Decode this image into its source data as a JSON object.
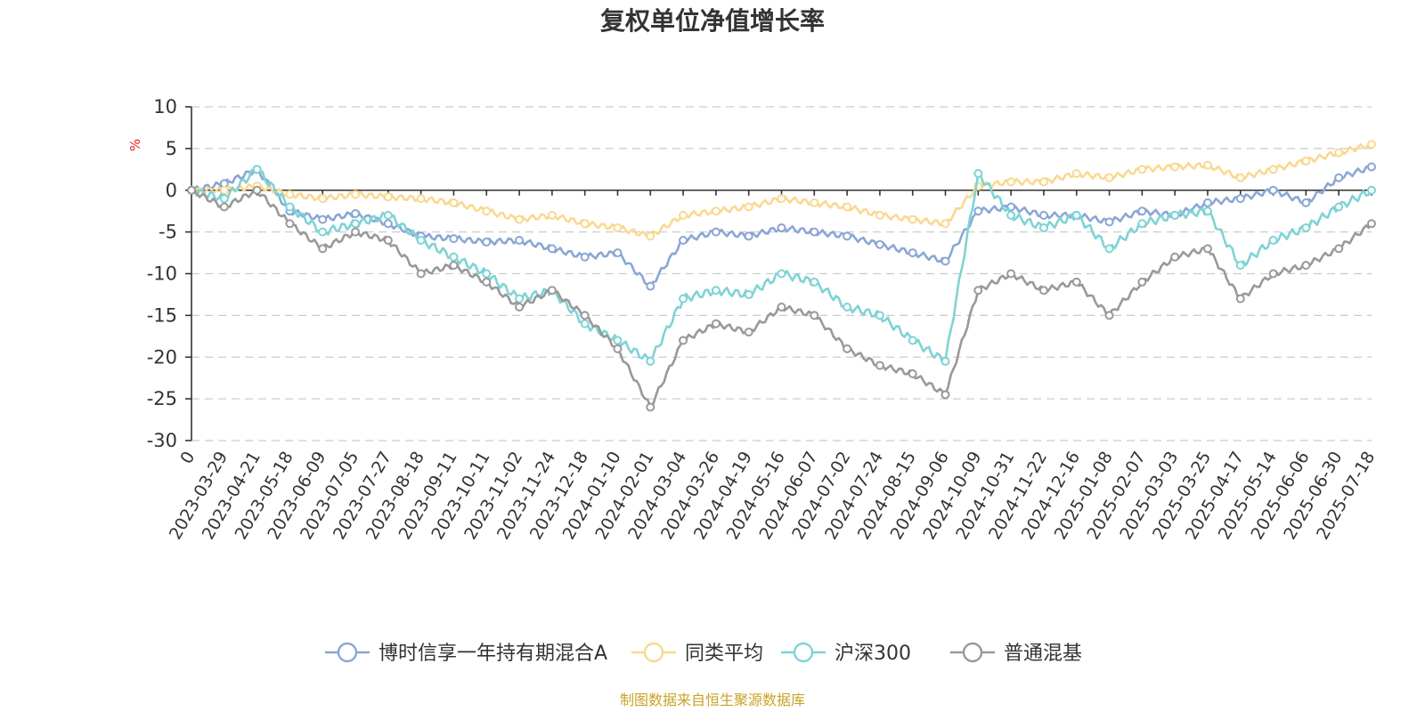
{
  "chart_data": {
    "type": "line",
    "title": "复权单位净值增长率",
    "ylabel": "%",
    "ylim": [
      -30,
      10
    ],
    "yticks": [
      10,
      5,
      0,
      -5,
      -10,
      -15,
      -20,
      -25,
      -30
    ],
    "grid": true,
    "legend_position": "bottom-center",
    "source": "制图数据来自恒生聚源数据库",
    "x_labels": [
      "0",
      "2023-03-29",
      "2023-04-21",
      "2023-05-18",
      "2023-06-09",
      "2023-07-05",
      "2023-07-27",
      "2023-08-18",
      "2023-09-11",
      "2023-10-11",
      "2023-11-02",
      "2023-11-24",
      "2023-12-18",
      "2024-01-10",
      "2024-02-01",
      "2024-03-04",
      "2024-03-26",
      "2024-04-19",
      "2024-05-16",
      "2024-06-07",
      "2024-07-02",
      "2024-07-24",
      "2024-08-15",
      "2024-09-06",
      "2024-10-09",
      "2024-10-31",
      "2024-11-22",
      "2024-12-16",
      "2025-01-08",
      "2025-02-07",
      "2025-03-03",
      "2025-03-25",
      "2025-04-17",
      "2025-05-14",
      "2025-06-06",
      "2025-06-30",
      "2025-07-18"
    ],
    "series": [
      {
        "name": "博时信享一年持有期混合A",
        "color": "#8aa6d6",
        "values": [
          0,
          0.8,
          2.5,
          -2.5,
          -3.5,
          -2.8,
          -4,
          -5.5,
          -5.8,
          -6.2,
          -6,
          -7,
          -8,
          -7.5,
          -11.5,
          -6,
          -5,
          -5.5,
          -4.5,
          -5,
          -5.5,
          -6.5,
          -7.5,
          -8.5,
          -2.5,
          -2,
          -3,
          -3,
          -3.8,
          -2.5,
          -3,
          -1.5,
          -1,
          0,
          -1.5,
          1.5,
          2.8
        ]
      },
      {
        "name": "同类平均",
        "color": "#fad890",
        "values": [
          0,
          0,
          0.5,
          -0.5,
          -1,
          -0.5,
          -0.8,
          -1,
          -1.5,
          -2.5,
          -3.5,
          -3,
          -4,
          -4.5,
          -5.5,
          -3,
          -2.5,
          -2,
          -1,
          -1.5,
          -2,
          -3,
          -3.5,
          -4,
          0.5,
          1,
          1,
          2,
          1.5,
          2.5,
          2.8,
          3,
          1.5,
          2.5,
          3.5,
          4.5,
          5.5
        ]
      },
      {
        "name": "沪深300",
        "color": "#7fd3d5",
        "values": [
          0,
          -1,
          2.5,
          -2,
          -5,
          -4,
          -3,
          -6,
          -8,
          -10,
          -13,
          -12,
          -16,
          -18,
          -20.5,
          -13,
          -12,
          -12.5,
          -10,
          -11,
          -14,
          -15,
          -18,
          -20.5,
          2,
          -3,
          -4.5,
          -3,
          -7,
          -4,
          -3,
          -2.5,
          -9,
          -6,
          -4.5,
          -2,
          0
        ]
      },
      {
        "name": "普通混基",
        "color": "#999999",
        "values": [
          0,
          -2,
          0,
          -4,
          -7,
          -5,
          -6,
          -10,
          -9,
          -11,
          -14,
          -12,
          -15,
          -19,
          -26,
          -18,
          -16,
          -17,
          -14,
          -15,
          -19,
          -21,
          -22,
          -24.5,
          -12,
          -10,
          -12,
          -11,
          -15,
          -11,
          -8,
          -7,
          -13,
          -10,
          -9,
          -7,
          -4
        ]
      }
    ]
  }
}
